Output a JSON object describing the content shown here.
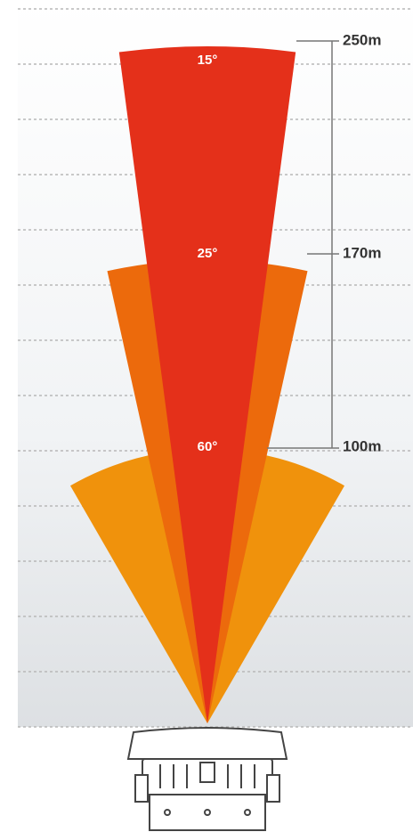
{
  "beams": [
    {
      "angle": "15°",
      "range": "250m"
    },
    {
      "angle": "25°",
      "range": "170m"
    },
    {
      "angle": "60°",
      "range": "100m"
    }
  ]
}
